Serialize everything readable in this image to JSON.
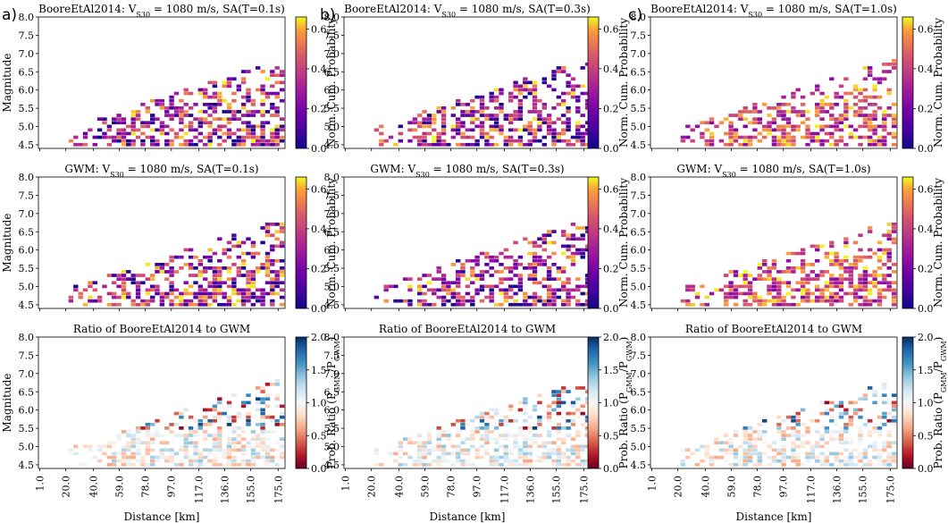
{
  "figure": {
    "panel_labels": [
      "a)",
      "b)",
      "c)"
    ]
  },
  "colorbars": {
    "prob": {
      "label": "Norm. Cum. Probability",
      "ticks": [
        "0.0",
        "0.2",
        "0.4",
        "0.6"
      ],
      "range": [
        0,
        0.66
      ]
    },
    "ratio": {
      "label": "Prob. Ratio (P GMM/P GWM)",
      "ticks": [
        "0.0",
        "0.5",
        "1.0",
        "1.5",
        "2.0"
      ],
      "range": [
        0,
        2
      ]
    }
  },
  "chart_data": [
    {
      "type": "heatmap",
      "title": "BooreEtAl2014: Vₛ₃₀ = 1080 m/s, SA(T=0.1s)",
      "title_html": "BooreEtAl2014: V<tspan baseline-shift=\"sub\" font-size=\"8\">S30</tspan> = 1080 m/s, SA(T=0.1s)",
      "ylabel": "Magnitude",
      "xlabel": "",
      "ylim": [
        4.4,
        8.0
      ],
      "xlim": [
        0,
        180
      ],
      "colormap": "plasma",
      "row": 0,
      "col": 0
    },
    {
      "type": "heatmap",
      "title": "BooreEtAl2014: Vₛ₃₀ = 1080 m/s, SA(T=0.3s)",
      "title_html": "BooreEtAl2014: V<tspan baseline-shift=\"sub\" font-size=\"8\">S30</tspan> = 1080 m/s, SA(T=0.3s)",
      "ylabel": "",
      "xlabel": "",
      "ylim": [
        4.4,
        8.0
      ],
      "xlim": [
        0,
        180
      ],
      "colormap": "plasma",
      "row": 0,
      "col": 1
    },
    {
      "type": "heatmap",
      "title": "BooreEtAl2014: Vₛ₃₀ = 1080 m/s, SA(T=1.0s)",
      "title_html": "BooreEtAl2014: V<tspan baseline-shift=\"sub\" font-size=\"8\">S30</tspan> = 1080 m/s, SA(T=1.0s)",
      "ylabel": "",
      "xlabel": "",
      "ylim": [
        4.4,
        8.0
      ],
      "xlim": [
        0,
        180
      ],
      "colormap": "plasma",
      "row": 0,
      "col": 2
    },
    {
      "type": "heatmap",
      "title": "GWM: Vₛ₃₀ = 1080 m/s, SA(T=0.1s)",
      "title_html": "GWM: V<tspan baseline-shift=\"sub\" font-size=\"8\">S30</tspan> = 1080 m/s, SA(T=0.1s)",
      "ylabel": "Magnitude",
      "xlabel": "",
      "ylim": [
        4.4,
        8.0
      ],
      "xlim": [
        0,
        180
      ],
      "colormap": "plasma",
      "row": 1,
      "col": 0
    },
    {
      "type": "heatmap",
      "title": "GWM: Vₛ₃₀ = 1080 m/s, SA(T=0.3s)",
      "title_html": "GWM: V<tspan baseline-shift=\"sub\" font-size=\"8\">S30</tspan> = 1080 m/s, SA(T=0.3s)",
      "ylabel": "",
      "xlabel": "",
      "ylim": [
        4.4,
        8.0
      ],
      "xlim": [
        0,
        180
      ],
      "colormap": "plasma",
      "row": 1,
      "col": 1
    },
    {
      "type": "heatmap",
      "title": "GWM: Vₛ₃₀ = 1080 m/s, SA(T=1.0s)",
      "title_html": "GWM: V<tspan baseline-shift=\"sub\" font-size=\"8\">S30</tspan> = 1080 m/s, SA(T=1.0s)",
      "ylabel": "",
      "xlabel": "",
      "ylim": [
        4.4,
        8.0
      ],
      "xlim": [
        0,
        180
      ],
      "colormap": "plasma",
      "row": 1,
      "col": 2
    },
    {
      "type": "heatmap",
      "title": "Ratio of BooreEtAl2014 to GWM",
      "title_html": "Ratio of BooreEtAl2014 to GWM",
      "ylabel": "Magnitude",
      "xlabel": "Distance [km]",
      "ylim": [
        4.4,
        8.0
      ],
      "xlim": [
        0,
        180
      ],
      "colormap": "RdBu",
      "row": 2,
      "col": 0
    },
    {
      "type": "heatmap",
      "title": "Ratio of BooreEtAl2014 to GWM",
      "title_html": "Ratio of BooreEtAl2014 to GWM",
      "ylabel": "",
      "xlabel": "Distance [km]",
      "ylim": [
        4.4,
        8.0
      ],
      "xlim": [
        0,
        180
      ],
      "colormap": "RdBu",
      "row": 2,
      "col": 1
    },
    {
      "type": "heatmap",
      "title": "Ratio of BooreEtAl2014 to GWM",
      "title_html": "Ratio of BooreEtAl2014 to GWM",
      "ylabel": "",
      "xlabel": "Distance [km]",
      "ylim": [
        4.4,
        8.0
      ],
      "xlim": [
        0,
        180
      ],
      "colormap": "RdBu",
      "row": 2,
      "col": 2
    }
  ],
  "axes": {
    "yticks": [
      "4.5",
      "5.0",
      "5.5",
      "6.0",
      "6.5",
      "7.0",
      "7.5",
      "8.0"
    ],
    "xticks": [
      "1.0",
      "20.0",
      "40.0",
      "59.0",
      "78.0",
      "97.0",
      "117.0",
      "136.0",
      "155.0",
      "175.0"
    ],
    "xtick_values": [
      1,
      20,
      40,
      59,
      78,
      97,
      117,
      136,
      155,
      175
    ]
  }
}
